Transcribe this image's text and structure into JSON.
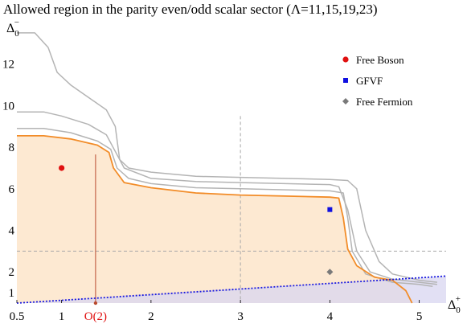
{
  "chart_data": {
    "type": "line",
    "title": "Allowed region in the parity even/odd scalar sector (Λ=11,15,19,23)",
    "xlabel": "Δ",
    "xlabel_sub": "0",
    "xlabel_sup": "+",
    "ylabel": "Δ",
    "ylabel_sub": "0",
    "ylabel_sup": "−",
    "xlim": [
      0.5,
      5.3
    ],
    "ylim": [
      0.5,
      14.0
    ],
    "x_ticks": [
      0.5,
      1,
      2,
      3,
      4,
      5
    ],
    "y_ticks": [
      1,
      2,
      4,
      6,
      8,
      10,
      12
    ],
    "colors": {
      "bound_outer": "#b4b4b4",
      "bound_inner": "#f28c28",
      "allowed_fill": "#fde9d2",
      "fermion_region": "#d8d5f0",
      "fermion_line": "#1a1ae0",
      "free_boson": "#e01010",
      "gfvf": "#1010e0",
      "free_fermion": "#7a7a7a",
      "o2_marker": "#b94a2f",
      "guide": "#a9a9a9"
    },
    "series": [
      {
        "name": "",
        "style": "outer",
        "points": [
          [
            0.5,
            13.5
          ],
          [
            0.7,
            13.5
          ],
          [
            0.85,
            12.8
          ],
          [
            0.95,
            11.6
          ],
          [
            1.1,
            11.0
          ],
          [
            1.3,
            10.4
          ],
          [
            1.5,
            9.8
          ],
          [
            1.6,
            9.0
          ],
          [
            1.65,
            7.4
          ],
          [
            1.75,
            7.0
          ],
          [
            2,
            6.8
          ],
          [
            2.5,
            6.6
          ],
          [
            3,
            6.55
          ],
          [
            3.5,
            6.5
          ],
          [
            4,
            6.45
          ],
          [
            4.2,
            6.4
          ],
          [
            4.3,
            6.0
          ],
          [
            4.4,
            4.0
          ],
          [
            4.55,
            2.5
          ],
          [
            4.7,
            1.9
          ],
          [
            5.0,
            1.6
          ],
          [
            5.2,
            1.5
          ]
        ]
      },
      {
        "name": "",
        "style": "outer",
        "points": [
          [
            0.5,
            9.7
          ],
          [
            0.8,
            9.7
          ],
          [
            1.0,
            9.5
          ],
          [
            1.3,
            9.1
          ],
          [
            1.5,
            8.6
          ],
          [
            1.6,
            7.8
          ],
          [
            1.7,
            7.0
          ],
          [
            2,
            6.5
          ],
          [
            2.5,
            6.35
          ],
          [
            3,
            6.3
          ],
          [
            3.5,
            6.25
          ],
          [
            4,
            6.2
          ],
          [
            4.1,
            6.1
          ],
          [
            4.2,
            5.0
          ],
          [
            4.3,
            3.0
          ],
          [
            4.45,
            2.0
          ],
          [
            4.7,
            1.65
          ],
          [
            5.0,
            1.5
          ],
          [
            5.2,
            1.4
          ]
        ]
      },
      {
        "name": "",
        "style": "outer",
        "points": [
          [
            0.5,
            8.9
          ],
          [
            0.8,
            8.9
          ],
          [
            1.1,
            8.7
          ],
          [
            1.4,
            8.3
          ],
          [
            1.55,
            7.9
          ],
          [
            1.62,
            7.0
          ],
          [
            1.75,
            6.5
          ],
          [
            2,
            6.25
          ],
          [
            2.5,
            6.05
          ],
          [
            3,
            6.0
          ],
          [
            3.5,
            5.95
          ],
          [
            4,
            5.9
          ],
          [
            4.15,
            5.8
          ],
          [
            4.2,
            4.6
          ],
          [
            4.25,
            3.0
          ],
          [
            4.4,
            1.9
          ],
          [
            4.7,
            1.5
          ],
          [
            5.0,
            1.4
          ],
          [
            5.15,
            1.3
          ]
        ]
      },
      {
        "name": "",
        "style": "inner",
        "points": [
          [
            0.5,
            8.55
          ],
          [
            0.8,
            8.55
          ],
          [
            1.1,
            8.4
          ],
          [
            1.4,
            8.1
          ],
          [
            1.53,
            7.75
          ],
          [
            1.58,
            7.0
          ],
          [
            1.7,
            6.3
          ],
          [
            2,
            6.05
          ],
          [
            2.5,
            5.8
          ],
          [
            3,
            5.7
          ],
          [
            3.5,
            5.65
          ],
          [
            4,
            5.6
          ],
          [
            4.1,
            5.55
          ],
          [
            4.15,
            4.6
          ],
          [
            4.2,
            3.1
          ],
          [
            4.3,
            2.3
          ],
          [
            4.5,
            1.75
          ],
          [
            4.7,
            1.6
          ],
          [
            4.85,
            1.1
          ],
          [
            4.92,
            0.5
          ]
        ]
      }
    ],
    "points": [
      {
        "name": "Free Boson",
        "x": 1.0,
        "y": 7.0,
        "marker": "circle"
      },
      {
        "name": "GFVF",
        "x": 4.0,
        "y": 5.0,
        "marker": "square"
      },
      {
        "name": "Free Fermion",
        "x": 4.0,
        "y": 2.0,
        "marker": "diamond"
      }
    ],
    "fermion_line": {
      "x": [
        0.5,
        5.3
      ],
      "y": [
        0.5,
        1.8
      ]
    },
    "guides": {
      "vertical_x": 3.0,
      "horizontal_y": 3.0
    },
    "o2_point": {
      "label": "O(2)",
      "x": 1.38,
      "y": 0.5,
      "y_top": 7.65
    }
  }
}
